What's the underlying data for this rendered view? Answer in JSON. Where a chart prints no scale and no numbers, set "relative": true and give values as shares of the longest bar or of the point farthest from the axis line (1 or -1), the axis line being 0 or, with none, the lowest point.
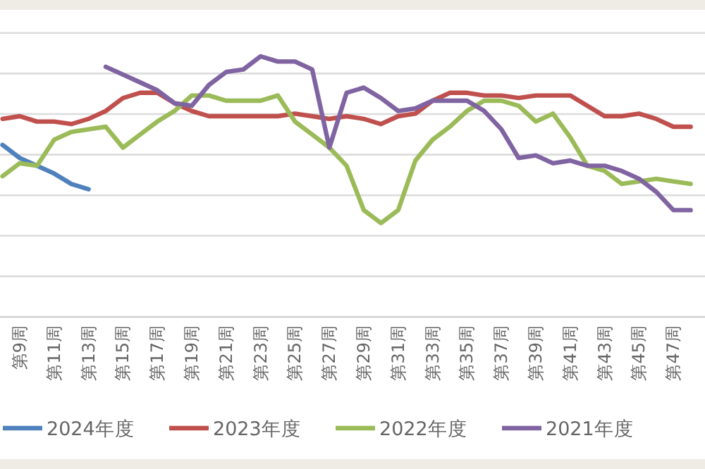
{
  "chart_data": {
    "type": "line",
    "relative": true,
    "grid": "y",
    "legend": "bottom",
    "marker": "none",
    "line_style": "solid",
    "categories": [
      null,
      "第9周",
      null,
      "第11周",
      null,
      "第13周",
      null,
      "第15周",
      null,
      "第17周",
      null,
      "第19周",
      null,
      "第21周",
      null,
      "第23周",
      null,
      "第25周",
      null,
      "第27周",
      null,
      "第29周",
      null,
      "第31周",
      null,
      "第33周",
      null,
      "第35周",
      null,
      "第37周",
      null,
      "第39周",
      null,
      "第41周",
      null,
      "第43周",
      null,
      "第45周",
      null,
      "第47周",
      null
    ],
    "series": [
      {
        "name": "2024年度",
        "color": "#4f81bd",
        "values": [
          0.66,
          0.61,
          0.58,
          0.55,
          0.51,
          0.49,
          null,
          null,
          null,
          null,
          null,
          null,
          null,
          null,
          null,
          null,
          null,
          null,
          null,
          null,
          null,
          null,
          null,
          null,
          null,
          null,
          null,
          null,
          null,
          null,
          null,
          null,
          null,
          null,
          null,
          null,
          null,
          null,
          null,
          null,
          null
        ]
      },
      {
        "name": "2023年度",
        "color": "#c0504d",
        "values": [
          0.76,
          0.77,
          0.75,
          0.75,
          0.74,
          0.76,
          0.79,
          0.84,
          0.86,
          0.86,
          0.82,
          0.79,
          0.77,
          0.77,
          0.77,
          0.77,
          0.77,
          0.78,
          0.77,
          0.76,
          0.77,
          0.76,
          0.74,
          0.77,
          0.78,
          0.83,
          0.86,
          0.86,
          0.85,
          0.85,
          0.84,
          0.85,
          0.85,
          0.85,
          0.81,
          0.77,
          0.77,
          0.78,
          0.76,
          0.73,
          0.73
        ]
      },
      {
        "name": "2022年度",
        "color": "#9bbb59",
        "values": [
          0.54,
          0.59,
          0.58,
          0.68,
          0.71,
          0.72,
          0.73,
          0.65,
          0.7,
          0.75,
          0.79,
          0.85,
          0.85,
          0.83,
          0.83,
          0.83,
          0.85,
          0.75,
          0.7,
          0.65,
          0.58,
          0.41,
          0.36,
          0.41,
          0.6,
          0.68,
          0.73,
          0.79,
          0.83,
          0.83,
          0.81,
          0.75,
          0.78,
          0.69,
          0.58,
          0.56,
          0.51,
          0.52,
          0.53,
          0.52,
          0.51
        ]
      },
      {
        "name": "2021年度",
        "color": "#8064a2",
        "values": [
          null,
          null,
          null,
          null,
          null,
          null,
          0.96,
          0.93,
          0.9,
          0.87,
          0.82,
          0.81,
          0.89,
          0.94,
          0.95,
          1.0,
          0.98,
          0.98,
          0.95,
          0.65,
          0.86,
          0.88,
          0.84,
          0.79,
          0.8,
          0.83,
          0.83,
          0.83,
          0.79,
          0.72,
          0.61,
          0.62,
          0.59,
          0.6,
          0.58,
          0.58,
          0.56,
          0.53,
          0.48,
          0.41,
          0.41
        ]
      }
    ]
  }
}
